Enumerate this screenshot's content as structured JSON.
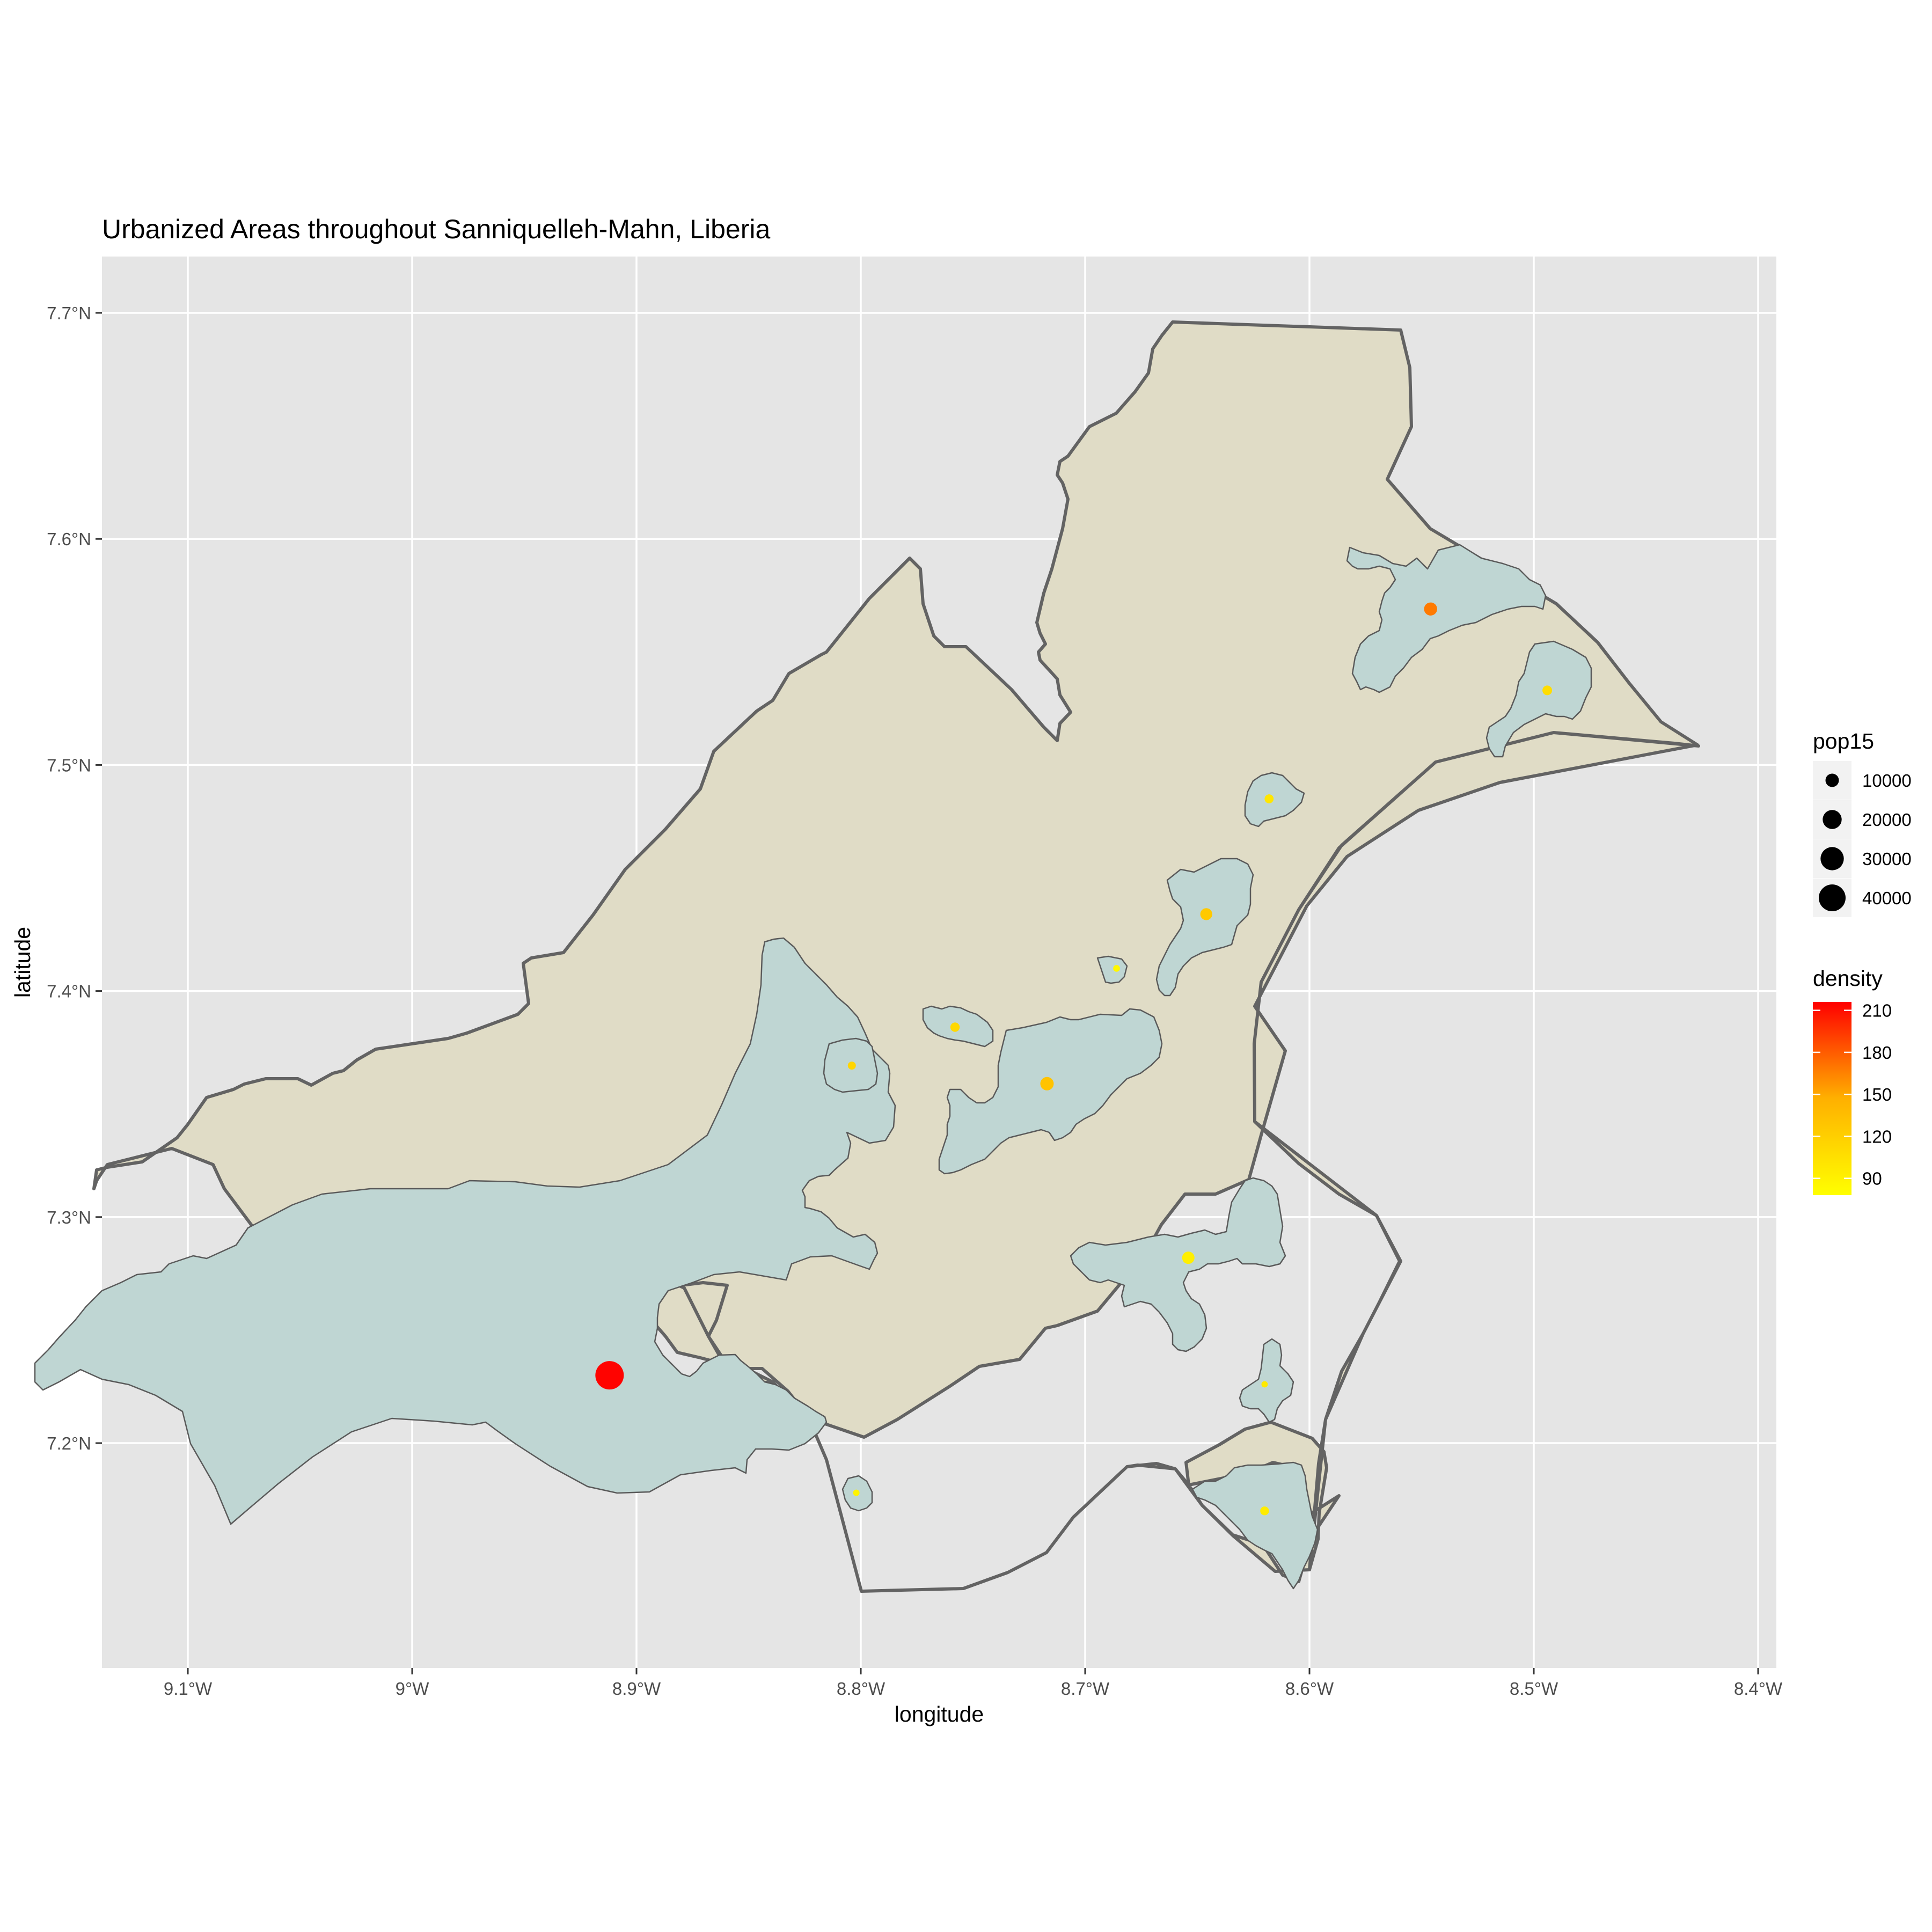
{
  "chart_data": {
    "type": "map",
    "title": "Urbanized Areas throughout Sanniquelleh-Mahn, Liberia",
    "xlabel": "longitude",
    "ylabel": "latitude",
    "xlim": [
      -9.14,
      -8.39
    ],
    "ylim": [
      7.1,
      7.725
    ],
    "x_ticks": [
      {
        "value": -9.1,
        "label": "9.1°W"
      },
      {
        "value": -9.0,
        "label": "9°W"
      },
      {
        "value": -8.9,
        "label": "8.9°W"
      },
      {
        "value": -8.8,
        "label": "8.8°W"
      },
      {
        "value": -8.7,
        "label": "8.7°W"
      },
      {
        "value": -8.6,
        "label": "8.6°W"
      },
      {
        "value": -8.5,
        "label": "8.5°W"
      },
      {
        "value": -8.4,
        "label": "8.4°W"
      }
    ],
    "y_ticks": [
      {
        "value": 7.2,
        "label": "7.2°N"
      },
      {
        "value": 7.3,
        "label": "7.3°N"
      },
      {
        "value": 7.4,
        "label": "7.4°N"
      },
      {
        "value": 7.5,
        "label": "7.5°N"
      },
      {
        "value": 7.6,
        "label": "7.6°N"
      },
      {
        "value": 7.7,
        "label": "7.7°N"
      }
    ],
    "grid": true,
    "background_color": "#e5e5e5",
    "district_fill": "#e0dcc6",
    "urban_fill": "#bfd6d3",
    "points": [
      {
        "lon": -8.912,
        "lat": 7.23,
        "pop15": 45000,
        "density": 215
      },
      {
        "lon": -8.546,
        "lat": 7.569,
        "pop15": 9500,
        "density": 168
      },
      {
        "lon": -8.494,
        "lat": 7.533,
        "pop15": 5200,
        "density": 108
      },
      {
        "lon": -8.618,
        "lat": 7.485,
        "pop15": 4500,
        "density": 100
      },
      {
        "lon": -8.646,
        "lat": 7.434,
        "pop15": 8000,
        "density": 125
      },
      {
        "lon": -8.686,
        "lat": 7.41,
        "pop15": 2500,
        "density": 85
      },
      {
        "lon": -8.758,
        "lat": 7.384,
        "pop15": 4800,
        "density": 112
      },
      {
        "lon": -8.804,
        "lat": 7.367,
        "pop15": 3600,
        "density": 115
      },
      {
        "lon": -8.717,
        "lat": 7.359,
        "pop15": 10000,
        "density": 130
      },
      {
        "lon": -8.654,
        "lat": 7.282,
        "pop15": 8500,
        "density": 92
      },
      {
        "lon": -8.62,
        "lat": 7.226,
        "pop15": 2200,
        "density": 96
      },
      {
        "lon": -8.802,
        "lat": 7.178,
        "pop15": 2300,
        "density": 88
      },
      {
        "lon": -8.62,
        "lat": 7.17,
        "pop15": 4300,
        "density": 95
      }
    ],
    "legend": {
      "size": {
        "title": "pop15",
        "entries": [
          {
            "label": "10000",
            "value": 10000
          },
          {
            "label": "20000",
            "value": 20000
          },
          {
            "label": "30000",
            "value": 30000
          },
          {
            "label": "40000",
            "value": 40000
          }
        ]
      },
      "color": {
        "title": "density",
        "range": [
          78,
          216
        ],
        "ticks": [
          {
            "label": "210",
            "value": 210
          },
          {
            "label": "180",
            "value": 180
          },
          {
            "label": "150",
            "value": 150
          },
          {
            "label": "120",
            "value": 120
          },
          {
            "label": "90",
            "value": 90
          }
        ],
        "low_color": "#ffff00",
        "high_color": "#ff0000"
      }
    }
  }
}
